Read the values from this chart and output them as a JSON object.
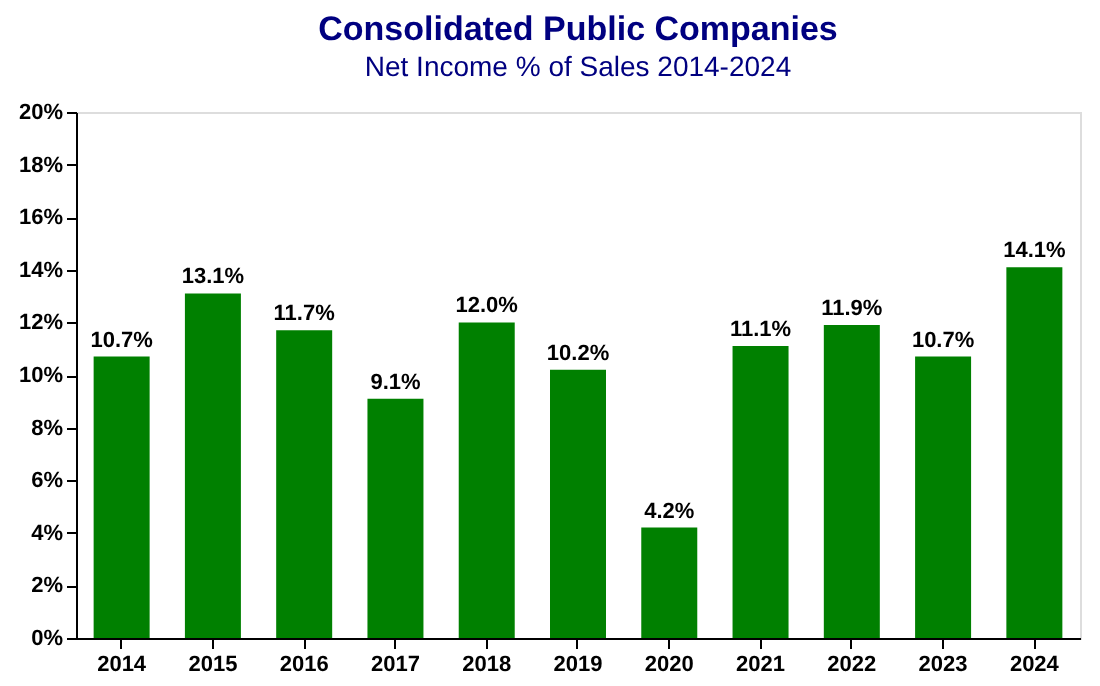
{
  "chart_data": {
    "type": "bar",
    "title": "Consolidated Public Companies",
    "subtitle": "Net Income % of Sales 2014-2024",
    "categories": [
      "2014",
      "2015",
      "2016",
      "2017",
      "2018",
      "2019",
      "2020",
      "2021",
      "2022",
      "2023",
      "2024"
    ],
    "values": [
      10.7,
      13.1,
      11.7,
      9.1,
      12.0,
      10.2,
      4.2,
      11.1,
      11.9,
      10.7,
      14.1
    ],
    "value_labels": [
      "10.7%",
      "13.1%",
      "11.7%",
      "9.1%",
      "12.0%",
      "10.2%",
      "4.2%",
      "11.1%",
      "11.9%",
      "10.7%",
      "14.1%"
    ],
    "color": "#008000",
    "ylim": [
      0,
      20
    ],
    "yticks": [
      {
        "value": 0,
        "label": "0%"
      },
      {
        "value": 2,
        "label": "2%"
      },
      {
        "value": 4,
        "label": "4%"
      },
      {
        "value": 6,
        "label": "6%"
      },
      {
        "value": 8,
        "label": "8%"
      },
      {
        "value": 10,
        "label": "10%"
      },
      {
        "value": 12,
        "label": "12%"
      },
      {
        "value": 14,
        "label": "14%"
      },
      {
        "value": 16,
        "label": "16%"
      },
      {
        "value": 18,
        "label": "18%"
      },
      {
        "value": 20,
        "label": "20%"
      }
    ],
    "grid": false
  }
}
